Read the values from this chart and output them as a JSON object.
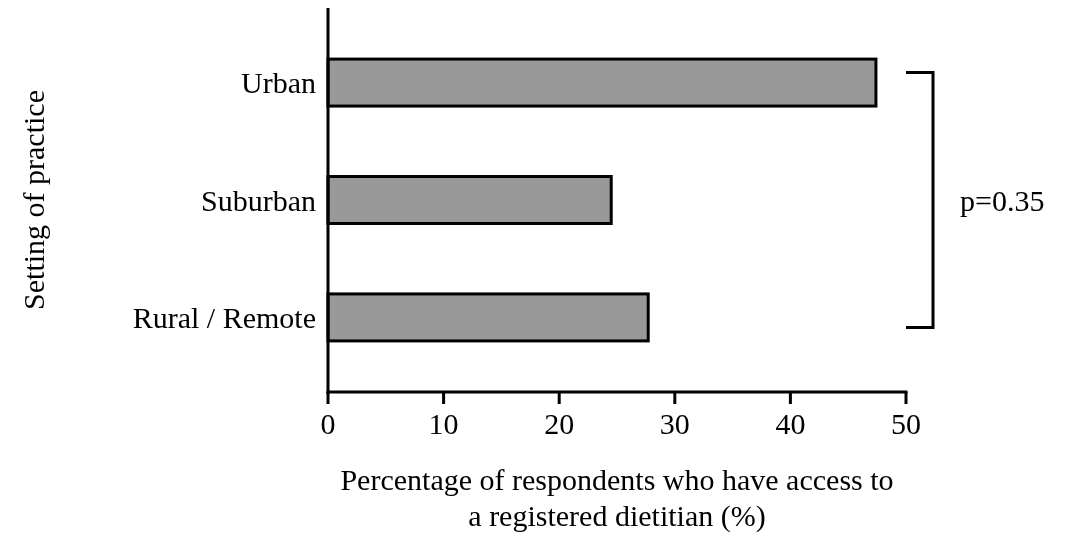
{
  "chart_data": {
    "type": "bar",
    "orientation": "horizontal",
    "categories": [
      "Urban",
      "Suburban",
      "Rural / Remote"
    ],
    "values": [
      47.4,
      24.5,
      27.7
    ],
    "color": "#999999",
    "xlabel": "Percentage of respondents who have access to a registered dietitian (%)",
    "ylabel": "Setting of practice",
    "xlim": [
      0,
      50
    ],
    "xticks": [
      0,
      10,
      20,
      30,
      40,
      50
    ],
    "grid": false,
    "annotations": [
      "p=0.35"
    ]
  }
}
